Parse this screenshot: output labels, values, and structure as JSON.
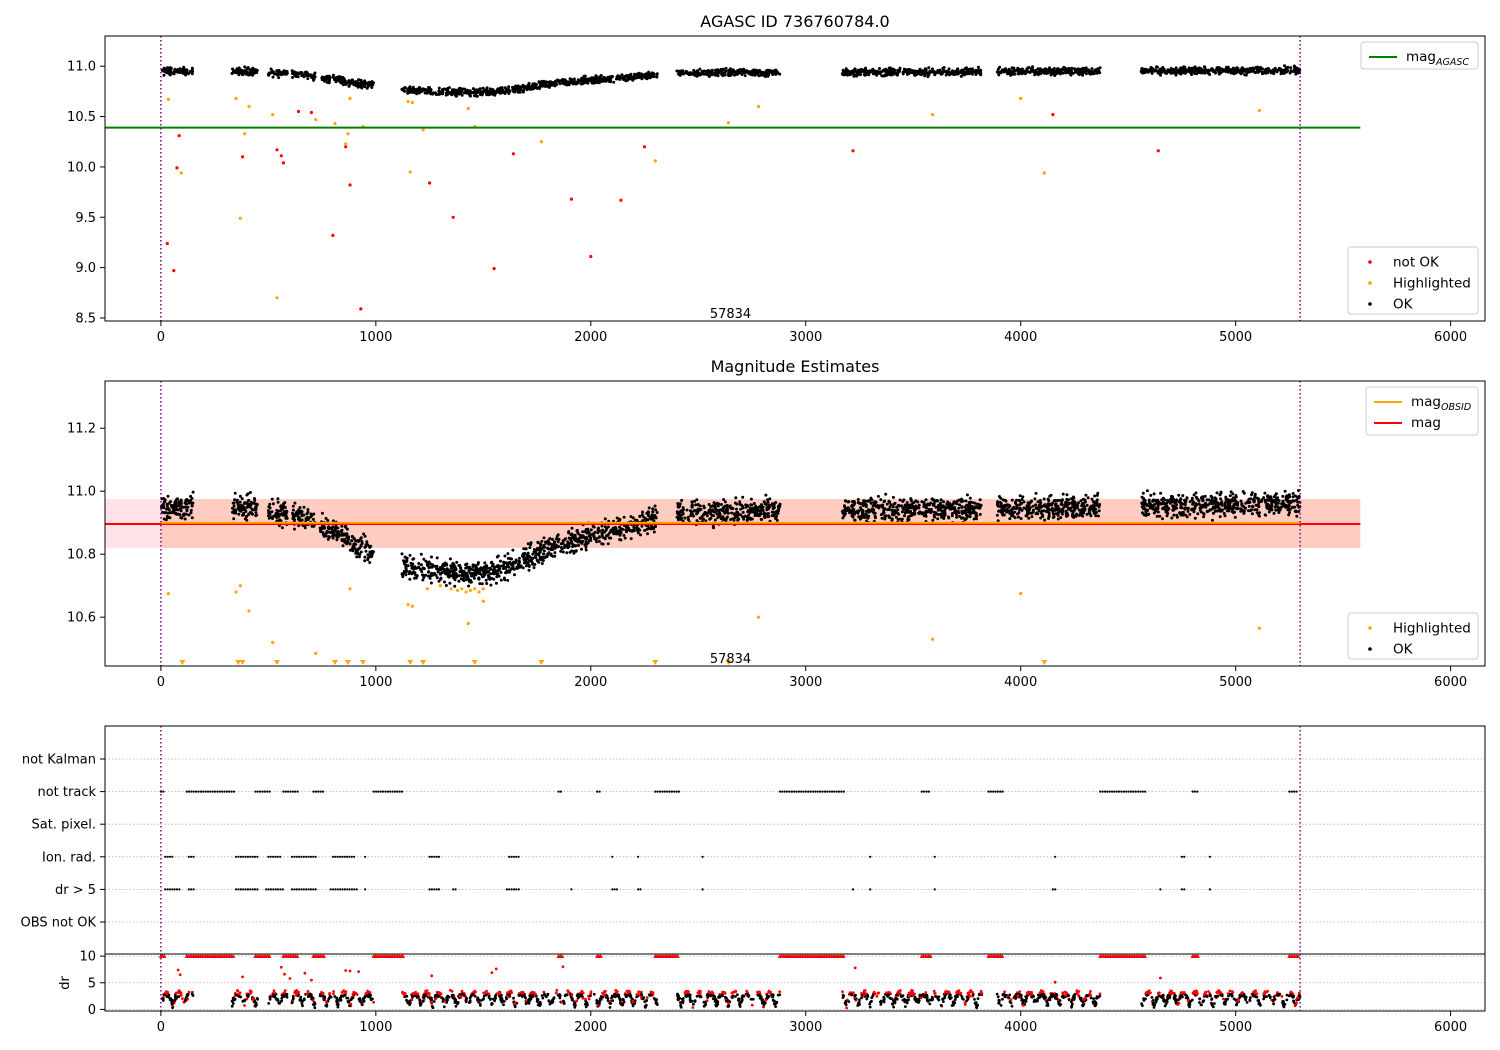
{
  "chart_data": [
    {
      "type": "scatter",
      "title": "AGASC ID 736760784.0",
      "xlabel": "",
      "ylabel": "",
      "xlim": [
        -260,
        6160
      ],
      "ylim": [
        8.47,
        11.3
      ],
      "xticks": [
        0,
        1000,
        2000,
        3000,
        4000,
        5000,
        6000
      ],
      "yticks": [
        8.5,
        9.0,
        9.5,
        10.0,
        10.5,
        11.0
      ],
      "ytick_labels": [
        "8.5",
        "9.0",
        "9.5",
        "10.0",
        "10.5",
        "11.0"
      ],
      "grid": false,
      "vlines": [
        0,
        5300
      ],
      "hlines": [
        {
          "y": 10.39,
          "x0": -260,
          "x1": 5580,
          "color": "#008000",
          "name_base": "mag",
          "name_sub": "AGASC"
        }
      ],
      "annotation": {
        "text": "57834",
        "x": 2650,
        "y": 8.55
      },
      "segments": [
        [
          0,
          150
        ],
        [
          330,
          450
        ],
        [
          500,
          590
        ],
        [
          610,
          720
        ],
        [
          740,
          990
        ],
        [
          1120,
          1600
        ],
        [
          1600,
          2310
        ],
        [
          2400,
          2880
        ],
        [
          3170,
          3820
        ],
        [
          3890,
          4370
        ],
        [
          4560,
          5300
        ]
      ],
      "ok_trend": [
        [
          0,
          10.95
        ],
        [
          400,
          10.95
        ],
        [
          650,
          10.92
        ],
        [
          800,
          10.87
        ],
        [
          990,
          10.81
        ],
        [
          1120,
          10.76
        ],
        [
          1350,
          10.74
        ],
        [
          1500,
          10.74
        ],
        [
          1650,
          10.77
        ],
        [
          1800,
          10.82
        ],
        [
          2000,
          10.86
        ],
        [
          2300,
          10.91
        ],
        [
          2400,
          10.93
        ],
        [
          2880,
          10.94
        ],
        [
          3170,
          10.94
        ],
        [
          5300,
          10.96
        ]
      ],
      "ok_scatter": 0.03,
      "series": [
        {
          "name": "not OK",
          "color": "#ff0000",
          "points": [
            [
              30,
              9.24
            ],
            [
              60,
              8.97
            ],
            [
              75,
              9.99
            ],
            [
              85,
              10.31
            ],
            [
              380,
              10.1
            ],
            [
              540,
              10.17
            ],
            [
              560,
              10.11
            ],
            [
              570,
              10.04
            ],
            [
              640,
              10.55
            ],
            [
              700,
              10.54
            ],
            [
              800,
              9.32
            ],
            [
              860,
              10.2
            ],
            [
              880,
              9.82
            ],
            [
              930,
              8.59
            ],
            [
              1250,
              9.84
            ],
            [
              1360,
              9.5
            ],
            [
              1550,
              8.99
            ],
            [
              1640,
              10.13
            ],
            [
              1910,
              9.68
            ],
            [
              2000,
              9.11
            ],
            [
              2140,
              9.67
            ],
            [
              2250,
              10.2
            ],
            [
              3220,
              10.16
            ],
            [
              4150,
              10.52
            ],
            [
              4640,
              10.16
            ]
          ]
        },
        {
          "name": "Highlighted",
          "color": "#ffa500",
          "points": [
            [
              35,
              10.67
            ],
            [
              95,
              9.94
            ],
            [
              350,
              10.68
            ],
            [
              370,
              9.49
            ],
            [
              390,
              10.33
            ],
            [
              410,
              10.6
            ],
            [
              520,
              10.52
            ],
            [
              540,
              8.7
            ],
            [
              720,
              10.47
            ],
            [
              810,
              10.43
            ],
            [
              860,
              10.23
            ],
            [
              870,
              10.33
            ],
            [
              880,
              10.68
            ],
            [
              940,
              10.4
            ],
            [
              1150,
              10.65
            ],
            [
              1160,
              9.95
            ],
            [
              1170,
              10.64
            ],
            [
              1220,
              10.37
            ],
            [
              1430,
              10.58
            ],
            [
              1460,
              10.4
            ],
            [
              1770,
              10.25
            ],
            [
              2300,
              10.06
            ],
            [
              2640,
              10.44
            ],
            [
              2780,
              10.6
            ],
            [
              3590,
              10.52
            ],
            [
              4000,
              10.68
            ],
            [
              4110,
              9.94
            ],
            [
              5110,
              10.56
            ]
          ]
        },
        {
          "name": "OK",
          "color": "#000000",
          "points": []
        }
      ],
      "legends": [
        {
          "position": "top-right",
          "entries": [
            {
              "label": "mag",
              "sub": "AGASC",
              "kind": "line",
              "color": "#008000"
            }
          ]
        },
        {
          "position": "bottom-right",
          "entries": [
            {
              "label": "not OK",
              "kind": "dot",
              "color": "#ff0000"
            },
            {
              "label": "Highlighted",
              "kind": "dot",
              "color": "#ffa500"
            },
            {
              "label": "OK",
              "kind": "dot",
              "color": "#000000"
            }
          ]
        }
      ]
    },
    {
      "type": "scatter",
      "title": "Magnitude Estimates",
      "xlabel": "",
      "ylabel": "",
      "xlim": [
        -260,
        6160
      ],
      "ylim": [
        10.445,
        11.35
      ],
      "xticks": [
        0,
        1000,
        2000,
        3000,
        4000,
        5000,
        6000
      ],
      "yticks": [
        10.6,
        10.8,
        11.0,
        11.2
      ],
      "ytick_labels": [
        "10.6",
        "10.8",
        "11.0",
        "11.2"
      ],
      "grid": false,
      "vlines": [
        0,
        5300
      ],
      "bands": [
        {
          "y0": 10.82,
          "y1": 10.975,
          "x0": -260,
          "x1": 5580,
          "color": "#ffc0cb",
          "opacity": 0.45
        },
        {
          "y0": 10.82,
          "y1": 10.975,
          "x0": 0,
          "x1": 5580,
          "color": "#ffa07a",
          "opacity": 0.35
        }
      ],
      "hlines": [
        {
          "y": 10.896,
          "x0": -260,
          "x1": 5580,
          "color": "#ff0000",
          "name_base": "mag",
          "name_sub": ""
        },
        {
          "y": 10.9,
          "x0": 0,
          "x1": 5300,
          "color": "#ffa500",
          "name_base": "mag",
          "name_sub": "OBSID"
        }
      ],
      "annotation": {
        "text": "57834",
        "x": 2650,
        "y": 10.47
      },
      "segments": [
        [
          0,
          150
        ],
        [
          330,
          450
        ],
        [
          500,
          590
        ],
        [
          610,
          720
        ],
        [
          740,
          990
        ],
        [
          1120,
          1600
        ],
        [
          1600,
          2310
        ],
        [
          2400,
          2880
        ],
        [
          3170,
          3820
        ],
        [
          3890,
          4370
        ],
        [
          4560,
          5300
        ]
      ],
      "ok_trend": [
        [
          0,
          10.95
        ],
        [
          400,
          10.95
        ],
        [
          650,
          10.92
        ],
        [
          800,
          10.87
        ],
        [
          990,
          10.81
        ],
        [
          1120,
          10.76
        ],
        [
          1350,
          10.74
        ],
        [
          1500,
          10.74
        ],
        [
          1650,
          10.77
        ],
        [
          1800,
          10.82
        ],
        [
          2000,
          10.86
        ],
        [
          2300,
          10.91
        ],
        [
          2400,
          10.93
        ],
        [
          2880,
          10.94
        ],
        [
          3170,
          10.94
        ],
        [
          5300,
          10.96
        ]
      ],
      "ok_scatter": 0.03,
      "series": [
        {
          "name": "Highlighted",
          "color": "#ffa500",
          "points": [
            [
              35,
              10.675
            ],
            [
              350,
              10.68
            ],
            [
              370,
              10.7
            ],
            [
              410,
              10.62
            ],
            [
              520,
              10.52
            ],
            [
              720,
              10.485
            ],
            [
              880,
              10.69
            ],
            [
              1150,
              10.64
            ],
            [
              1170,
              10.635
            ],
            [
              1240,
              10.69
            ],
            [
              1300,
              10.7
            ],
            [
              1350,
              10.69
            ],
            [
              1380,
              10.685
            ],
            [
              1400,
              10.69
            ],
            [
              1420,
              10.68
            ],
            [
              1440,
              10.685
            ],
            [
              1460,
              10.69
            ],
            [
              1480,
              10.68
            ],
            [
              1500,
              10.69
            ],
            [
              1430,
              10.58
            ],
            [
              1500,
              10.65
            ],
            [
              2780,
              10.6
            ],
            [
              3590,
              10.53
            ],
            [
              4000,
              10.675
            ],
            [
              5110,
              10.565
            ]
          ]
        },
        {
          "name": "OK",
          "color": "#000000",
          "points": []
        }
      ],
      "offscale_markers": {
        "color": "#ffa500",
        "x": [
          100,
          360,
          380,
          540,
          810,
          870,
          940,
          1160,
          1220,
          1460,
          1770,
          2300,
          2640,
          4110
        ]
      },
      "legends": [
        {
          "position": "top-right",
          "entries": [
            {
              "label": "mag",
              "sub": "OBSID",
              "kind": "line",
              "color": "#ffa500"
            },
            {
              "label": "mag",
              "sub": "",
              "kind": "line",
              "color": "#ff0000"
            }
          ]
        },
        {
          "position": "bottom-right",
          "entries": [
            {
              "label": "Highlighted",
              "kind": "dot",
              "color": "#ffa500"
            },
            {
              "label": "OK",
              "kind": "dot",
              "color": "#000000"
            }
          ]
        }
      ]
    },
    {
      "type": "scatter",
      "title": "",
      "xlabel": "",
      "ylabel": "",
      "xlim": [
        -260,
        6160
      ],
      "grid": true,
      "vlines": [
        0,
        5300
      ],
      "categories": [
        "not Kalman",
        "not track",
        "Sat. pixel.",
        "Ion. rad.",
        "dr > 5",
        "OBS not OK"
      ],
      "flag_ranges": {
        "not track": [
          [
            0,
            20
          ],
          [
            120,
            340
          ],
          [
            440,
            510
          ],
          [
            570,
            640
          ],
          [
            710,
            760
          ],
          [
            990,
            1130
          ],
          [
            1850,
            1870
          ],
          [
            2030,
            2050
          ],
          [
            2300,
            2410
          ],
          [
            2880,
            3180
          ],
          [
            3540,
            3580
          ],
          [
            3850,
            3920
          ],
          [
            4370,
            4580
          ],
          [
            4800,
            4830
          ],
          [
            5250,
            5290
          ]
        ],
        "Ion. rad.": [
          [
            20,
            60
          ],
          [
            130,
            160
          ],
          [
            350,
            450
          ],
          [
            500,
            560
          ],
          [
            610,
            720
          ],
          [
            800,
            900
          ],
          [
            950,
            960
          ],
          [
            1250,
            1300
          ],
          [
            1620,
            1670
          ],
          [
            2100,
            2110
          ],
          [
            2220,
            2230
          ],
          [
            2520,
            2530
          ],
          [
            3300,
            3310
          ],
          [
            3600,
            3610
          ],
          [
            4160,
            4170
          ],
          [
            4750,
            4770
          ],
          [
            4880,
            4890
          ]
        ],
        "dr > 5": [
          [
            20,
            90
          ],
          [
            130,
            160
          ],
          [
            350,
            450
          ],
          [
            490,
            570
          ],
          [
            610,
            720
          ],
          [
            790,
            920
          ],
          [
            950,
            960
          ],
          [
            1250,
            1300
          ],
          [
            1360,
            1380
          ],
          [
            1610,
            1670
          ],
          [
            1910,
            1920
          ],
          [
            2100,
            2130
          ],
          [
            2220,
            2240
          ],
          [
            2520,
            2530
          ],
          [
            3220,
            3230
          ],
          [
            3300,
            3310
          ],
          [
            3600,
            3610
          ],
          [
            4150,
            4170
          ],
          [
            4650,
            4660
          ],
          [
            4750,
            4770
          ],
          [
            4880,
            4890
          ]
        ]
      }
    },
    {
      "type": "scatter",
      "title": "",
      "xlabel": "",
      "ylabel": "dr",
      "xlim": [
        -260,
        6160
      ],
      "ylim": [
        -0.3,
        10.4
      ],
      "xticks": [
        0,
        1000,
        2000,
        3000,
        4000,
        5000,
        6000
      ],
      "xtick_labels": [
        "0",
        "1000",
        "2000",
        "3000",
        "4000",
        "5000",
        "6000"
      ],
      "yticks": [
        0,
        5,
        10
      ],
      "ytick_labels": [
        "0",
        "5",
        "10"
      ],
      "grid": true,
      "vlines": [
        0,
        5300
      ],
      "series": [
        {
          "name": "OK",
          "color": "#000000"
        },
        {
          "name": "not OK",
          "color": "#ff0000"
        }
      ],
      "capped_value": 10
    }
  ]
}
